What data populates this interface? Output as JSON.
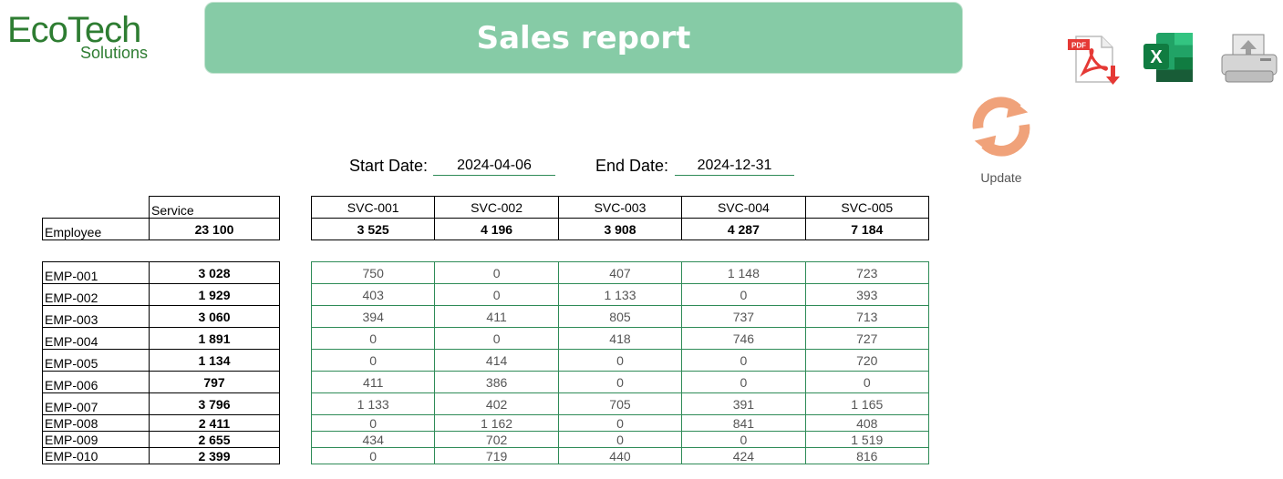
{
  "logo": {
    "brand": "EcoTech",
    "sub": "Solutions"
  },
  "title": "Sales report",
  "toolbar": {
    "pdf_icon": "pdf-export-icon",
    "excel_icon": "excel-export-icon",
    "print_icon": "printer-icon",
    "update_icon": "refresh-icon",
    "update_label": "Update"
  },
  "filters": {
    "start_label": "Start Date:",
    "start_value": "2024-04-06",
    "end_label": "End Date:",
    "end_value": "2024-12-31"
  },
  "summary": {
    "service_label": "Service",
    "employee_label": "Employee",
    "grand_total": "23 100"
  },
  "services": [
    {
      "code": "SVC-001",
      "total": "3 525"
    },
    {
      "code": "SVC-002",
      "total": "4 196"
    },
    {
      "code": "SVC-003",
      "total": "3 908"
    },
    {
      "code": "SVC-004",
      "total": "4 287"
    },
    {
      "code": "SVC-005",
      "total": "7 184"
    }
  ],
  "employees": [
    {
      "id": "EMP-001",
      "total": "3 028",
      "values": [
        "750",
        "0",
        "407",
        "1 148",
        "723"
      ]
    },
    {
      "id": "EMP-002",
      "total": "1 929",
      "values": [
        "403",
        "0",
        "1 133",
        "0",
        "393"
      ]
    },
    {
      "id": "EMP-003",
      "total": "3 060",
      "values": [
        "394",
        "411",
        "805",
        "737",
        "713"
      ]
    },
    {
      "id": "EMP-004",
      "total": "1 891",
      "values": [
        "0",
        "0",
        "418",
        "746",
        "727"
      ]
    },
    {
      "id": "EMP-005",
      "total": "1 134",
      "values": [
        "0",
        "414",
        "0",
        "0",
        "720"
      ]
    },
    {
      "id": "EMP-006",
      "total": "797",
      "values": [
        "411",
        "386",
        "0",
        "0",
        "0"
      ]
    },
    {
      "id": "EMP-007",
      "total": "3 796",
      "values": [
        "1 133",
        "402",
        "705",
        "391",
        "1 165"
      ]
    },
    {
      "id": "EMP-008",
      "total": "2 411",
      "values": [
        "0",
        "1 162",
        "0",
        "841",
        "408"
      ]
    },
    {
      "id": "EMP-009",
      "total": "2 655",
      "values": [
        "434",
        "702",
        "0",
        "0",
        "1 519"
      ]
    },
    {
      "id": "EMP-010",
      "total": "2 399",
      "values": [
        "0",
        "719",
        "440",
        "424",
        "816"
      ]
    }
  ],
  "colors": {
    "banner": "#86cba6",
    "brand": "#2e7d32",
    "grid": "#2e8b57",
    "refresh": "#f0a27a"
  }
}
